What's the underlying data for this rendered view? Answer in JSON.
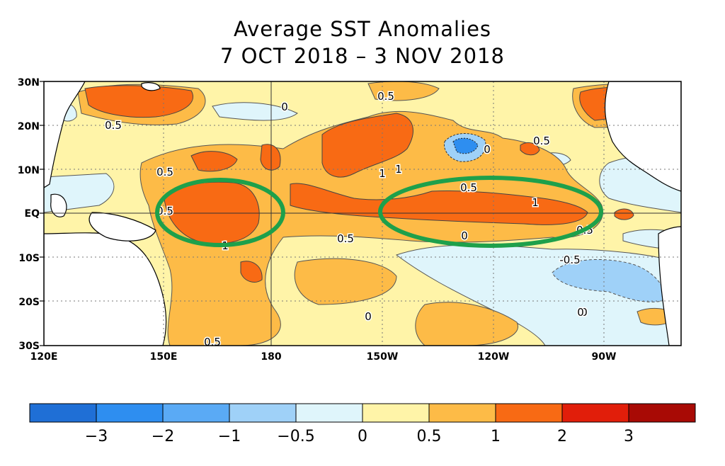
{
  "title": {
    "line1": "Average SST Anomalies",
    "line2": "7 OCT 2018 – 3 NOV 2018"
  },
  "map": {
    "lat_labels": [
      "30N",
      "20N",
      "10N",
      "EQ",
      "10S",
      "20S",
      "30S"
    ],
    "lon_labels": [
      "120E",
      "150E",
      "180",
      "150W",
      "120W",
      "90W"
    ],
    "contour_labels": [
      "0.5",
      "0",
      "0.5",
      "0.5",
      "0.5",
      "0.5",
      "1",
      "1",
      "0.5",
      "0",
      "0.5",
      "0",
      "0.5",
      "1",
      "0.5",
      "0",
      "-0.5",
      "0",
      "0",
      "1",
      "0.5"
    ],
    "highlight_color": "#1ea04b"
  },
  "colorbar": {
    "ticks": [
      "−3",
      "−2",
      "−1",
      "−0.5",
      "0",
      "0.5",
      "1",
      "2",
      "3"
    ],
    "colors": [
      "#1f6fd6",
      "#2e8ef0",
      "#5aaaf5",
      "#9fd1f8",
      "#dff5fb",
      "#fff4a8",
      "#fdbb47",
      "#f86a14",
      "#e11e0a",
      "#a80a05"
    ]
  }
}
